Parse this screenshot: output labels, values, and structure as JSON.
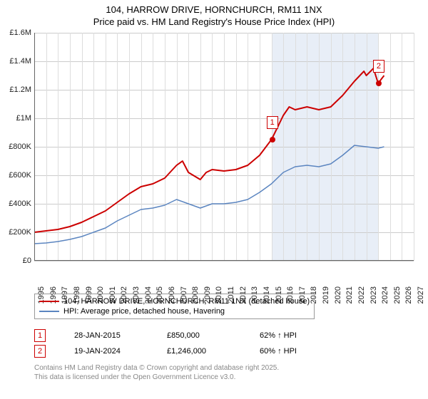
{
  "title": "104, HARROW DRIVE, HORNCHURCH, RM11 1NX",
  "subtitle": "Price paid vs. HM Land Registry's House Price Index (HPI)",
  "chart": {
    "type": "line",
    "background_color": "#ffffff",
    "shade_color": "#e8eef7",
    "grid_color": "#cccccc",
    "axis_color": "#666666",
    "x": {
      "min": 1995,
      "max": 2027,
      "step": 1,
      "labels": [
        "1995",
        "1996",
        "1997",
        "1998",
        "1999",
        "2000",
        "2001",
        "2002",
        "2003",
        "2004",
        "2005",
        "2006",
        "2007",
        "2008",
        "2009",
        "2010",
        "2011",
        "2012",
        "2013",
        "2014",
        "2015",
        "2016",
        "2017",
        "2018",
        "2019",
        "2020",
        "2021",
        "2022",
        "2023",
        "2024",
        "2025",
        "2026",
        "2027"
      ]
    },
    "y": {
      "min": 0,
      "max": 1600000,
      "step": 200000,
      "labels": [
        "£0",
        "£200K",
        "£400K",
        "£600K",
        "£800K",
        "£1M",
        "£1.2M",
        "£1.4M",
        "£1.6M"
      ]
    },
    "series": [
      {
        "name": "104, HARROW DRIVE, HORNCHURCH, RM11 1NX (detached house)",
        "color": "#cc0000",
        "width": 2,
        "points": [
          [
            1995,
            200000
          ],
          [
            1996,
            210000
          ],
          [
            1997,
            220000
          ],
          [
            1998,
            240000
          ],
          [
            1999,
            270000
          ],
          [
            2000,
            310000
          ],
          [
            2001,
            350000
          ],
          [
            2002,
            410000
          ],
          [
            2003,
            470000
          ],
          [
            2004,
            520000
          ],
          [
            2005,
            540000
          ],
          [
            2006,
            580000
          ],
          [
            2007,
            670000
          ],
          [
            2007.5,
            700000
          ],
          [
            2008,
            620000
          ],
          [
            2009,
            570000
          ],
          [
            2009.5,
            620000
          ],
          [
            2010,
            640000
          ],
          [
            2011,
            630000
          ],
          [
            2012,
            640000
          ],
          [
            2013,
            670000
          ],
          [
            2014,
            740000
          ],
          [
            2015,
            850000
          ],
          [
            2015.3,
            900000
          ],
          [
            2016,
            1020000
          ],
          [
            2016.5,
            1080000
          ],
          [
            2017,
            1060000
          ],
          [
            2018,
            1080000
          ],
          [
            2019,
            1060000
          ],
          [
            2020,
            1080000
          ],
          [
            2021,
            1160000
          ],
          [
            2022,
            1260000
          ],
          [
            2022.8,
            1330000
          ],
          [
            2023,
            1300000
          ],
          [
            2023.6,
            1350000
          ],
          [
            2024,
            1246000
          ],
          [
            2024.5,
            1300000
          ]
        ]
      },
      {
        "name": "HPI: Average price, detached house, Havering",
        "color": "#5b85c0",
        "width": 1.5,
        "points": [
          [
            1995,
            120000
          ],
          [
            1996,
            125000
          ],
          [
            1997,
            135000
          ],
          [
            1998,
            150000
          ],
          [
            1999,
            170000
          ],
          [
            2000,
            200000
          ],
          [
            2001,
            230000
          ],
          [
            2002,
            280000
          ],
          [
            2003,
            320000
          ],
          [
            2004,
            360000
          ],
          [
            2005,
            370000
          ],
          [
            2006,
            390000
          ],
          [
            2007,
            430000
          ],
          [
            2008,
            400000
          ],
          [
            2009,
            370000
          ],
          [
            2010,
            400000
          ],
          [
            2011,
            400000
          ],
          [
            2012,
            410000
          ],
          [
            2013,
            430000
          ],
          [
            2014,
            480000
          ],
          [
            2015,
            540000
          ],
          [
            2016,
            620000
          ],
          [
            2017,
            660000
          ],
          [
            2018,
            670000
          ],
          [
            2019,
            660000
          ],
          [
            2020,
            680000
          ],
          [
            2021,
            740000
          ],
          [
            2022,
            810000
          ],
          [
            2023,
            800000
          ],
          [
            2024,
            790000
          ],
          [
            2024.5,
            800000
          ]
        ]
      }
    ],
    "sale_markers": [
      {
        "n": "1",
        "x": 2015.07,
        "y": 850000,
        "color": "#cc0000"
      },
      {
        "n": "2",
        "x": 2024.05,
        "y": 1246000,
        "color": "#cc0000"
      }
    ],
    "shade_range": [
      2015.07,
      2024.05
    ]
  },
  "sales": [
    {
      "n": "1",
      "date": "28-JAN-2015",
      "price": "£850,000",
      "delta": "62% ↑ HPI",
      "color": "#cc0000"
    },
    {
      "n": "2",
      "date": "19-JAN-2024",
      "price": "£1,246,000",
      "delta": "60% ↑ HPI",
      "color": "#cc0000"
    }
  ],
  "footer": {
    "line1": "Contains HM Land Registry data © Crown copyright and database right 2025.",
    "line2": "This data is licensed under the Open Government Licence v3.0."
  }
}
